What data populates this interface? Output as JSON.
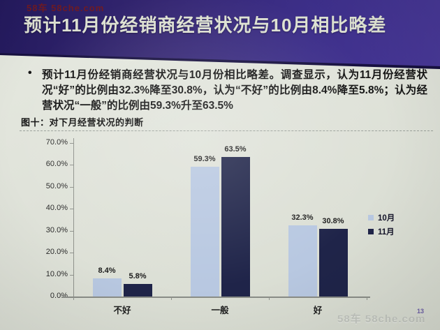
{
  "watermark_top": "58车  58che.com",
  "watermark_bottom": "58车  58che.com",
  "page_number": "13",
  "header": {
    "title": "预计11月份经销商经营状况与10月相比略差"
  },
  "body": {
    "bullet": "•",
    "paragraph": "预计11月份经销商经营状况与10月份相比略差。调查显示，认为11月份经营状况“好”的比例由32.3%降至30.8%，认为“不好”的比例由8.4%降至5.8%；认为经营状况“一般”的比例由59.3%升至63.5%"
  },
  "figure": {
    "caption": "图十：对下月经营状况的判断"
  },
  "chart_data": {
    "type": "bar",
    "title": "图十：对下月经营状况的判断",
    "categories": [
      "不好",
      "一般",
      "好"
    ],
    "series": [
      {
        "name": "10月",
        "color": "#b8c8e1",
        "values": [
          8.4,
          59.3,
          32.3
        ]
      },
      {
        "name": "11月",
        "color": "#1f2449",
        "values": [
          5.8,
          63.5,
          30.8
        ]
      }
    ],
    "value_suffix": "%",
    "y_ticks": [
      "70.0%",
      "60.0%",
      "50.0%",
      "40.0%",
      "30.0%",
      "20.0%",
      "10.0%",
      "0.0%"
    ],
    "ylim": [
      0,
      70
    ],
    "grid": false,
    "data_labels": true,
    "legend_position": "right"
  }
}
